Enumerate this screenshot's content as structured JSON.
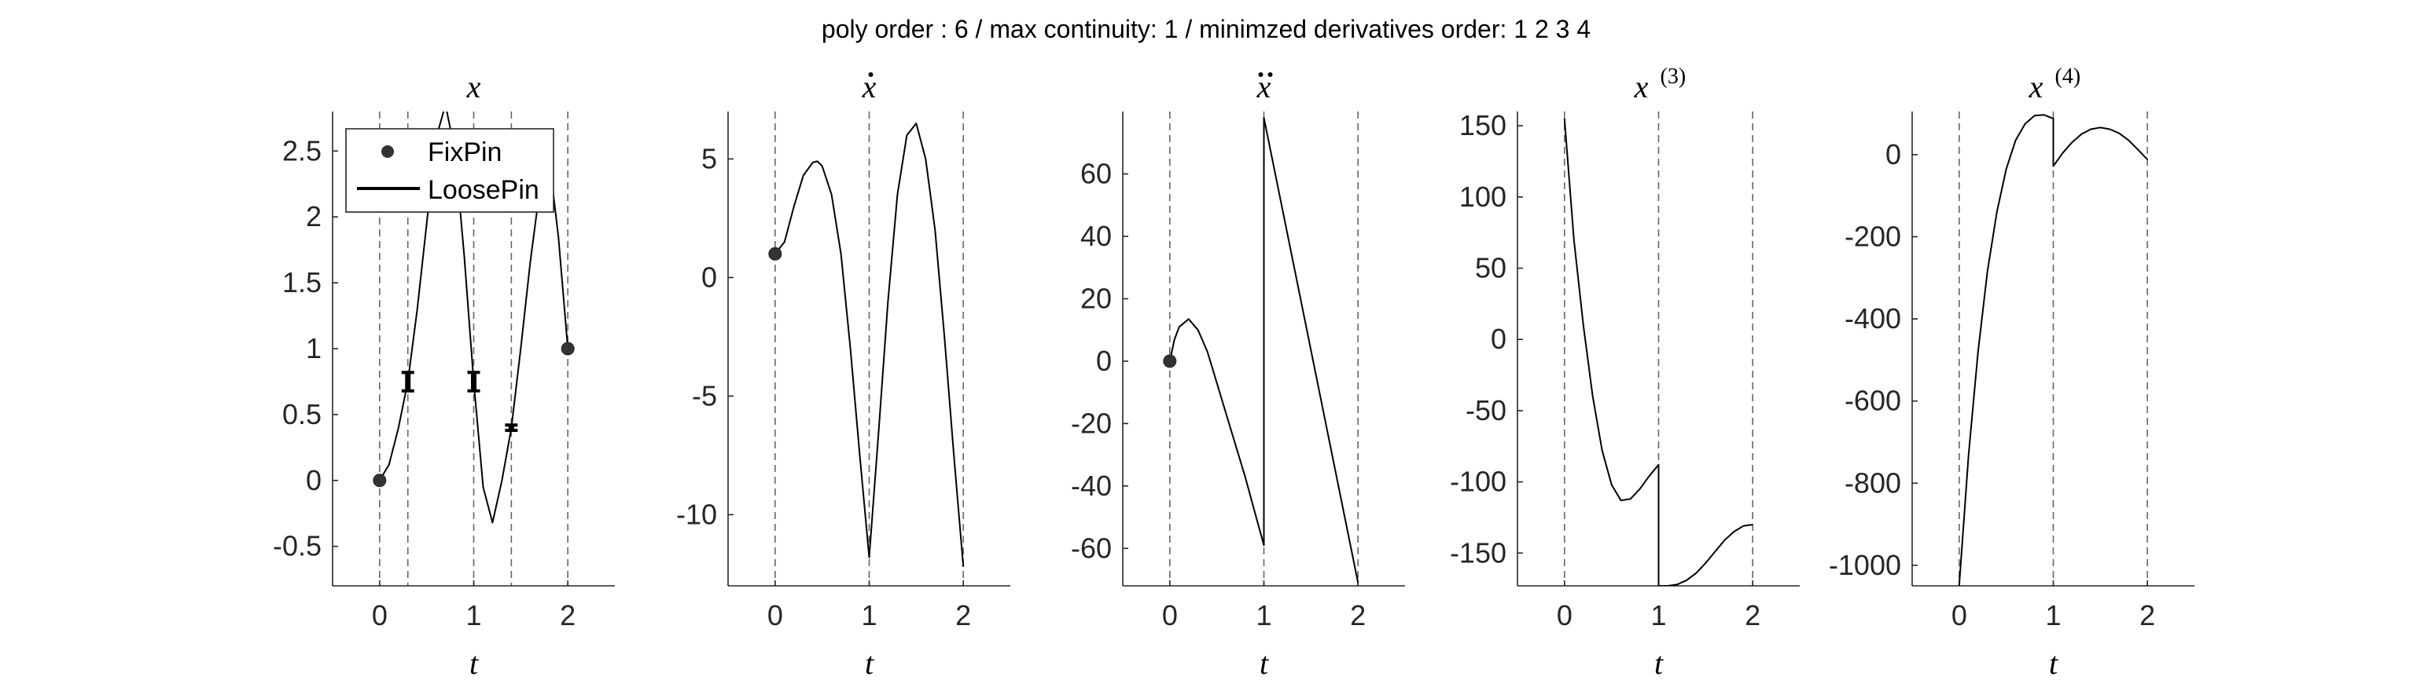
{
  "figure": {
    "suptitle": "poly order : 6 / max continuity: 1 / minimzed derivatives order: 1  2  3  4",
    "legend": {
      "fixpin": "FixPin",
      "loosepin": "LoosePin"
    },
    "colors": {
      "line": "#000000",
      "marker": "#333333",
      "axis": "#262626",
      "guide": "#666666"
    }
  },
  "chart_data": [
    {
      "type": "line",
      "title": "x",
      "xlabel": "t",
      "ylabel": "",
      "xlim": [
        -0.5,
        2.5
      ],
      "ylim": [
        -0.8,
        2.8
      ],
      "xticks": [
        0,
        1,
        2
      ],
      "yticks": [
        -0.5,
        0,
        0.5,
        1,
        1.5,
        2,
        2.5
      ],
      "ytick_labels": [
        "-0.5",
        "0",
        "0.5",
        "1",
        "1.5",
        "2",
        "2.5"
      ],
      "vlines": [
        0,
        0.3,
        1,
        1.4,
        2
      ],
      "series": [
        {
          "name": "LoosePin",
          "x": [
            0,
            0.1,
            0.2,
            0.3,
            0.4,
            0.5,
            0.6,
            0.7,
            0.8,
            0.9,
            1.0,
            1.1,
            1.2,
            1.3,
            1.4,
            1.5,
            1.6,
            1.7,
            1.8,
            1.9,
            2.0
          ],
          "y": [
            0,
            0.12,
            0.4,
            0.75,
            1.3,
            1.95,
            2.6,
            2.85,
            2.5,
            1.7,
            0.75,
            -0.05,
            -0.32,
            0.0,
            0.4,
            1.0,
            1.65,
            2.2,
            2.45,
            1.85,
            1.0
          ]
        }
      ],
      "fixpins": [
        {
          "x": 0,
          "y": 0
        },
        {
          "x": 2,
          "y": 1
        }
      ],
      "loosepins": [
        {
          "x": 0.3,
          "y": 0.75,
          "lo": 0.68,
          "hi": 0.82
        },
        {
          "x": 1.0,
          "y": 0.75,
          "lo": 0.68,
          "hi": 0.82
        },
        {
          "x": 1.4,
          "y": 0.4,
          "lo": 0.38,
          "hi": 0.42
        }
      ],
      "legend": {
        "entries": [
          "FixPin",
          "LoosePin"
        ],
        "placement": "top-right"
      }
    },
    {
      "type": "line",
      "title": "x-dot",
      "xlabel": "t",
      "xlim": [
        -0.5,
        2.5
      ],
      "ylim": [
        -13,
        7
      ],
      "xticks": [
        0,
        1,
        2
      ],
      "yticks": [
        -10,
        -5,
        0,
        5
      ],
      "ytick_labels": [
        "-10",
        "-5",
        "0",
        "5"
      ],
      "vlines": [
        0,
        1,
        2
      ],
      "series": [
        {
          "x": [
            0,
            0.1,
            0.2,
            0.3,
            0.4,
            0.45,
            0.5,
            0.6,
            0.7,
            0.8,
            0.9,
            1.0,
            1.1,
            1.2,
            1.3,
            1.4,
            1.5,
            1.6,
            1.7,
            1.8,
            1.9,
            2.0
          ],
          "y": [
            1,
            1.5,
            3.0,
            4.3,
            4.85,
            4.9,
            4.7,
            3.5,
            1.0,
            -3.0,
            -7.5,
            -11.8,
            -6.5,
            -1.0,
            3.5,
            6.0,
            6.5,
            5.0,
            2.0,
            -2.5,
            -7.5,
            -12.2
          ]
        }
      ],
      "fixpins": [
        {
          "x": 0,
          "y": 1
        }
      ]
    },
    {
      "type": "line",
      "title": "x-ddot",
      "xlabel": "t",
      "xlim": [
        -0.5,
        2.5
      ],
      "ylim": [
        -72,
        80
      ],
      "xticks": [
        0,
        1,
        2
      ],
      "yticks": [
        -60,
        -40,
        -20,
        0,
        20,
        40,
        60
      ],
      "ytick_labels": [
        "-60",
        "-40",
        "-20",
        "0",
        "20",
        "40",
        "60"
      ],
      "vlines": [
        0,
        1,
        2
      ],
      "series": [
        {
          "x": [
            0,
            0.05,
            0.1,
            0.2,
            0.3,
            0.4,
            0.5,
            0.6,
            0.7,
            0.8,
            0.9,
            1.0,
            1.0,
            2.0
          ],
          "y": [
            0,
            7,
            11,
            13.5,
            10,
            3,
            -7,
            -17,
            -27,
            -37,
            -48,
            -59,
            78,
            -71
          ]
        }
      ],
      "fixpins": [
        {
          "x": 0,
          "y": 0
        }
      ]
    },
    {
      "type": "line",
      "title": "x^(3)",
      "xlabel": "t",
      "xlim": [
        -0.5,
        2.5
      ],
      "ylim": [
        -173,
        160
      ],
      "xticks": [
        0,
        1,
        2
      ],
      "yticks": [
        -150,
        -100,
        -50,
        0,
        50,
        100,
        150
      ],
      "ytick_labels": [
        "-150",
        "-100",
        "-50",
        "0",
        "50",
        "100",
        "150"
      ],
      "vlines": [
        0,
        1,
        2
      ],
      "series": [
        {
          "x": [
            0,
            0.1,
            0.2,
            0.3,
            0.4,
            0.5,
            0.6,
            0.7,
            0.8,
            0.9,
            1.0,
            1.0,
            1.1,
            1.2,
            1.3,
            1.4,
            1.5,
            1.6,
            1.7,
            1.8,
            1.9,
            2.0
          ],
          "y": [
            155,
            70,
            10,
            -40,
            -78,
            -102,
            -113,
            -112,
            -105,
            -96,
            -88,
            -173,
            -173,
            -172,
            -169,
            -164,
            -157,
            -149,
            -141,
            -135,
            -131,
            -130
          ]
        }
      ]
    },
    {
      "type": "line",
      "title": "x^(4)",
      "xlabel": "t",
      "xlim": [
        -0.5,
        2.5
      ],
      "ylim": [
        -1050,
        105
      ],
      "xticks": [
        0,
        1,
        2
      ],
      "yticks": [
        -1000,
        -800,
        -600,
        -400,
        -200,
        0
      ],
      "ytick_labels": [
        "-1000",
        "-800",
        "-600",
        "-400",
        "-200",
        "0"
      ],
      "vlines": [
        0,
        1,
        2
      ],
      "series": [
        {
          "x": [
            0,
            0.1,
            0.2,
            0.3,
            0.4,
            0.5,
            0.6,
            0.7,
            0.8,
            0.9,
            1.0,
            1.0,
            1.1,
            1.2,
            1.3,
            1.4,
            1.5,
            1.6,
            1.7,
            1.8,
            1.9,
            2.0
          ],
          "y": [
            -1050,
            -730,
            -480,
            -285,
            -140,
            -35,
            35,
            75,
            95,
            97,
            88,
            -28,
            4,
            30,
            50,
            62,
            66,
            62,
            52,
            35,
            12,
            -12
          ]
        }
      ]
    }
  ]
}
